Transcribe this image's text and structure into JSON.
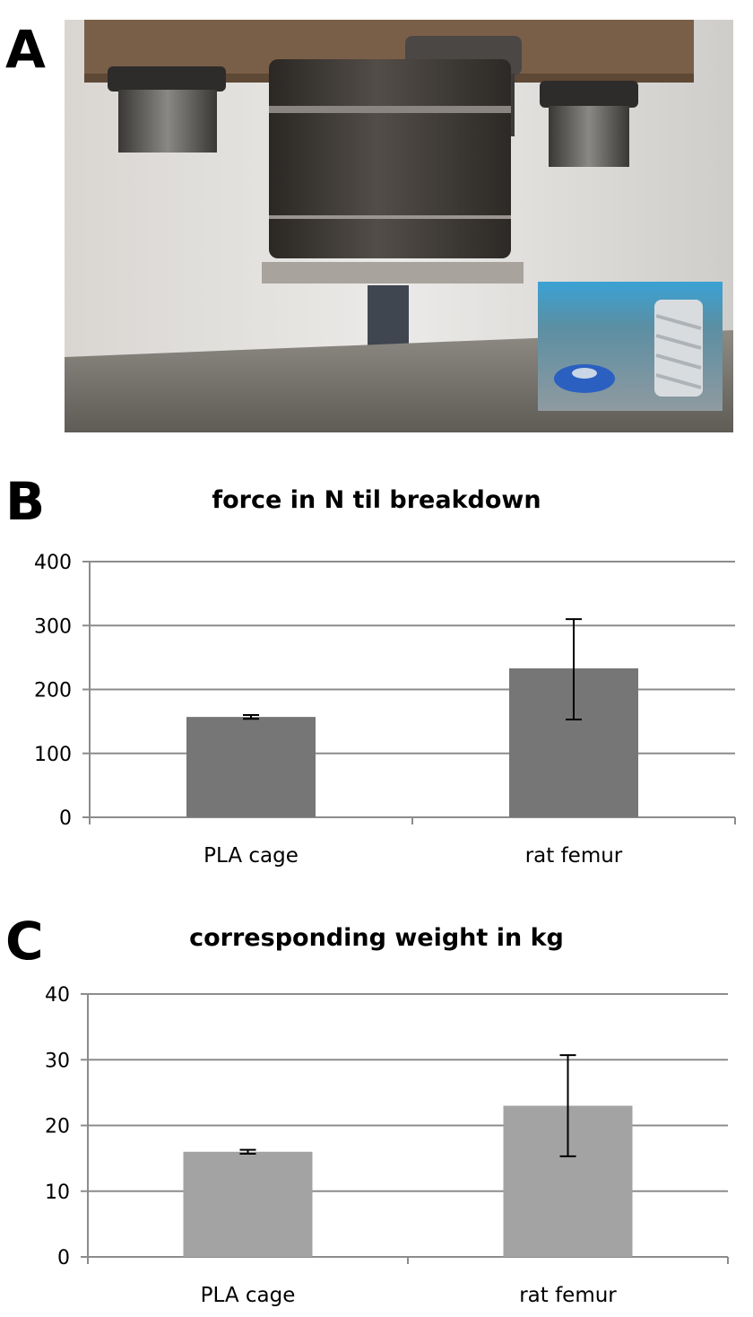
{
  "panels": [
    {
      "letter": "A"
    },
    {
      "letter": "B"
    },
    {
      "letter": "C"
    }
  ],
  "photo": {
    "icon": "compression-test-photo"
  },
  "colors": {
    "bar_b": "#767676",
    "bar_c": "#a3a3a3",
    "grid": "#8c8c8c",
    "error": "#000000"
  },
  "chart_data": [
    {
      "type": "bar",
      "title": "force in N til breakdown",
      "categories": [
        "PLA cage",
        "rat femur"
      ],
      "values": [
        157,
        233
      ],
      "error": [
        [
          154,
          160
        ],
        [
          153,
          310
        ]
      ],
      "ylim": [
        0,
        400
      ],
      "yticks": [
        0,
        100,
        200,
        300,
        400
      ],
      "grid": true,
      "xlabel": "",
      "ylabel": ""
    },
    {
      "type": "bar",
      "title": "corresponding weight in kg",
      "categories": [
        "PLA cage",
        "rat femur"
      ],
      "values": [
        16,
        23
      ],
      "error": [
        [
          15.7,
          16.3
        ],
        [
          15.3,
          30.7
        ]
      ],
      "ylim": [
        0,
        40
      ],
      "yticks": [
        0,
        10,
        20,
        30,
        40
      ],
      "grid": true,
      "xlabel": "",
      "ylabel": ""
    }
  ]
}
